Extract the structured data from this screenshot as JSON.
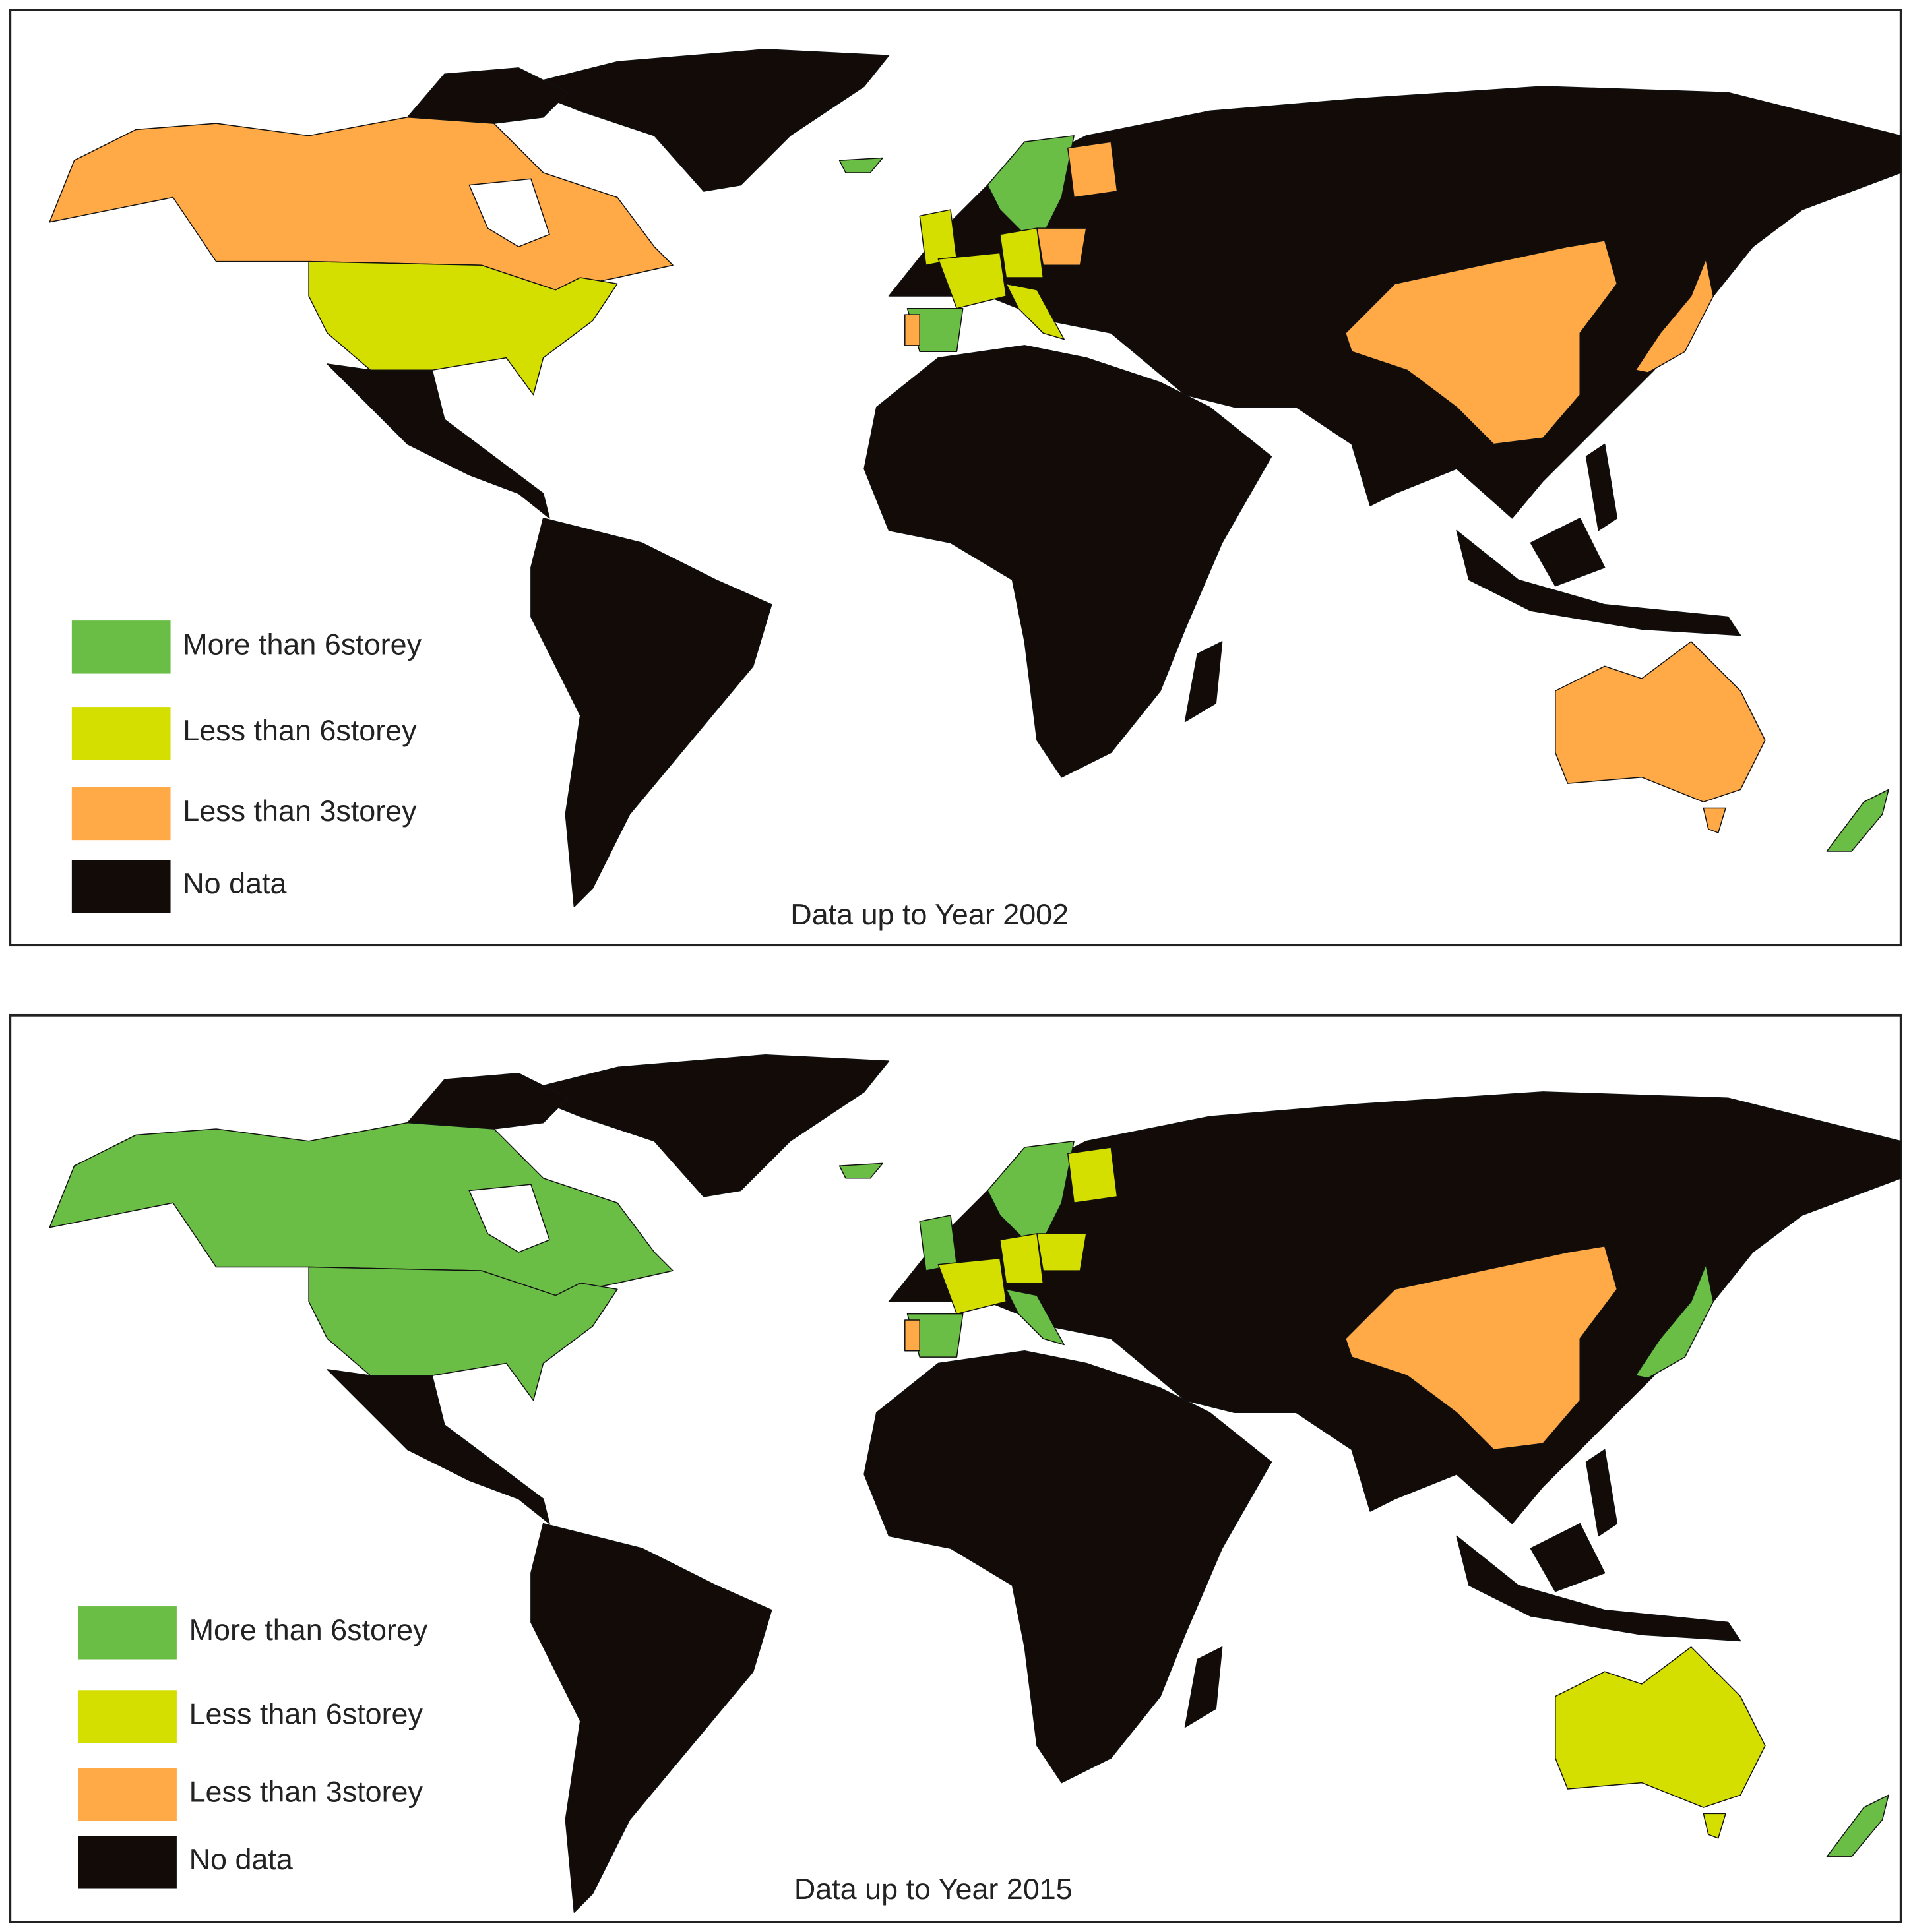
{
  "panels": [
    {
      "caption": "Data up to Year 2002",
      "legend": [
        {
          "label": "More than 6storey",
          "color": "#6abd45"
        },
        {
          "label": "Less than 6storey",
          "color": "#d4df00"
        },
        {
          "label": "Less than 3storey",
          "color": "#ffa947"
        },
        {
          "label": "No data",
          "color": "#120b07"
        }
      ]
    },
    {
      "caption": "Data up to Year 2015",
      "legend": [
        {
          "label": "More than 6storey",
          "color": "#6abd45"
        },
        {
          "label": "Less than 6storey",
          "color": "#d4df00"
        },
        {
          "label": "Less than 3storey",
          "color": "#ffa947"
        },
        {
          "label": "No data",
          "color": "#120b07"
        }
      ]
    }
  ]
}
